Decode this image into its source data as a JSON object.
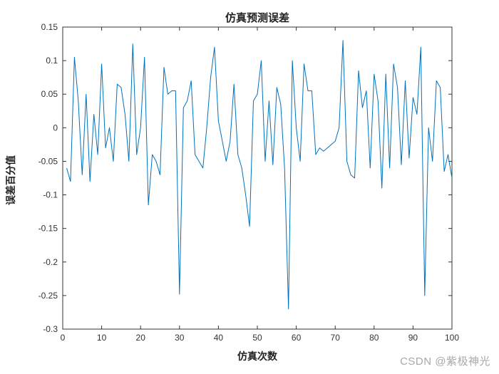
{
  "watermark": "CSDN @紫极神光",
  "chart_data": {
    "type": "line",
    "title": "仿真预测误差",
    "xlabel": "仿真次数",
    "ylabel": "误差百分值",
    "xlim": [
      0,
      100
    ],
    "ylim": [
      -0.3,
      0.15
    ],
    "grid": false,
    "legend": "none",
    "line_color": "#0072BD",
    "axis_color": "#333333",
    "xtick_values": [
      0,
      10,
      20,
      30,
      40,
      50,
      60,
      70,
      80,
      90,
      100
    ],
    "xtick_labels": [
      "0",
      "10",
      "20",
      "30",
      "40",
      "50",
      "60",
      "70",
      "80",
      "90",
      "100"
    ],
    "ytick_values": [
      -0.3,
      -0.25,
      -0.2,
      -0.15,
      -0.1,
      -0.05,
      0,
      0.05,
      0.1,
      0.15
    ],
    "ytick_labels": [
      "-0.3",
      "-0.25",
      "-0.2",
      "-0.15",
      "-0.1",
      "-0.05",
      "0",
      "0.05",
      "0.1",
      "0.15"
    ],
    "x": [
      1,
      2,
      3,
      4,
      5,
      6,
      7,
      8,
      9,
      10,
      11,
      12,
      13,
      14,
      15,
      16,
      17,
      18,
      19,
      20,
      21,
      22,
      23,
      24,
      25,
      26,
      27,
      28,
      29,
      30,
      31,
      32,
      33,
      34,
      35,
      36,
      37,
      38,
      39,
      40,
      41,
      42,
      43,
      44,
      45,
      46,
      47,
      48,
      49,
      50,
      51,
      52,
      53,
      54,
      55,
      56,
      57,
      58,
      59,
      60,
      61,
      62,
      63,
      64,
      65,
      66,
      67,
      68,
      69,
      70,
      71,
      72,
      73,
      74,
      75,
      76,
      77,
      78,
      79,
      80,
      81,
      82,
      83,
      84,
      85,
      86,
      87,
      88,
      89,
      90,
      91,
      92,
      93,
      94,
      95,
      96,
      97,
      98,
      99,
      100
    ],
    "y": [
      -0.06,
      -0.08,
      0.105,
      0.04,
      -0.07,
      0.05,
      -0.08,
      0.02,
      -0.04,
      0.095,
      -0.03,
      0.0,
      -0.05,
      0.065,
      0.06,
      0.02,
      -0.05,
      0.125,
      -0.04,
      0.0,
      0.105,
      -0.115,
      -0.04,
      -0.05,
      -0.07,
      0.09,
      0.05,
      0.055,
      0.055,
      -0.248,
      0.03,
      0.04,
      0.07,
      -0.04,
      -0.05,
      -0.06,
      0.0,
      0.075,
      0.12,
      0.01,
      -0.02,
      -0.05,
      -0.02,
      0.065,
      -0.04,
      -0.06,
      -0.1,
      -0.147,
      0.04,
      0.05,
      0.1,
      -0.05,
      0.04,
      -0.055,
      0.06,
      0.035,
      -0.06,
      -0.27,
      0.1,
      0.0,
      -0.05,
      0.095,
      0.055,
      0.055,
      -0.04,
      -0.03,
      -0.035,
      -0.03,
      -0.025,
      -0.02,
      0.0,
      0.13,
      -0.05,
      -0.07,
      -0.075,
      0.085,
      0.03,
      0.055,
      -0.06,
      0.08,
      0.04,
      -0.09,
      0.08,
      -0.06,
      0.095,
      0.06,
      -0.055,
      0.07,
      -0.045,
      0.045,
      0.02,
      0.12,
      -0.25,
      0.0,
      -0.05,
      0.07,
      0.06,
      -0.065,
      -0.04,
      -0.075
    ]
  }
}
